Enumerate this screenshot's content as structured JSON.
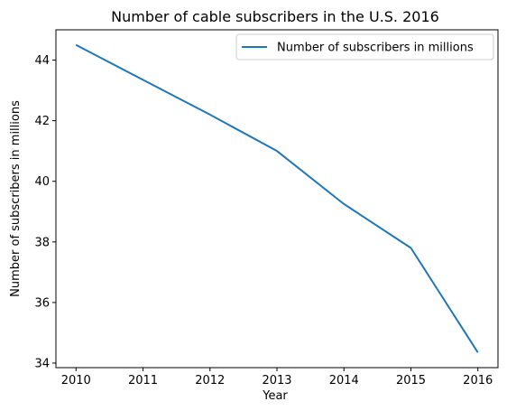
{
  "chart_data": {
    "type": "line",
    "title": "Number of cable subscribers in the U.S. 2016",
    "xlabel": "Year",
    "ylabel": "Number of subscribers in millions",
    "x": [
      2010,
      2011,
      2012,
      2013,
      2014,
      2015,
      2016
    ],
    "series": [
      {
        "name": "Number of subscribers in millions",
        "values": [
          44.5,
          43.35,
          42.2,
          41.0,
          39.25,
          37.8,
          34.35
        ],
        "color": "#1f77b4"
      }
    ],
    "xticks": [
      "2010",
      "2011",
      "2012",
      "2013",
      "2014",
      "2015",
      "2016"
    ],
    "yticks": [
      "34",
      "36",
      "38",
      "40",
      "42",
      "44"
    ],
    "ylim": [
      33.85,
      45.0
    ],
    "xlim": [
      2009.7,
      2016.3
    ],
    "grid": false,
    "legend_position": "upper right"
  }
}
